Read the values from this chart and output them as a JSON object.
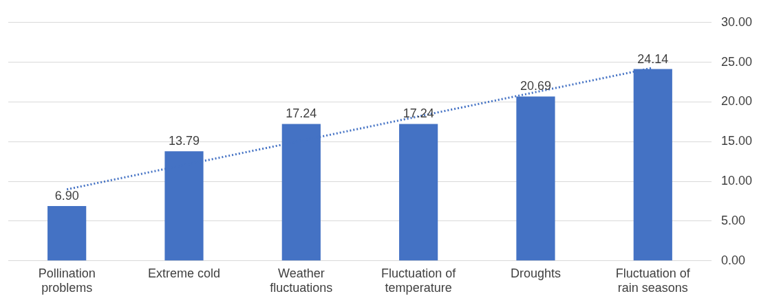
{
  "chart_data": {
    "type": "bar",
    "categories": [
      "Pollination problems",
      "Extreme cold",
      "Weather fluctuations",
      "Fluctuation of temperature",
      "Droughts",
      "Fluctuation of rain seasons"
    ],
    "series": [
      {
        "color": "#4472c4",
        "values": [
          6.9,
          13.79,
          17.24,
          17.24,
          20.69,
          24.14
        ],
        "value_labels": [
          "6.90",
          "13.79",
          "17.24",
          "17.24",
          "20.69",
          "24.14"
        ]
      },
      {
        "type": "line",
        "color": "#4472c4",
        "line_style": "dotted",
        "marker": "none",
        "x": [
          "Pollination problems",
          "Fluctuation of rain seasons"
        ],
        "values": [
          9.0,
          24.3
        ]
      }
    ],
    "ylim": [
      0,
      30
    ],
    "yticks": [
      {
        "value": 0,
        "label": "0.00"
      },
      {
        "value": 5,
        "label": "5.00"
      },
      {
        "value": 10,
        "label": "10.00"
      },
      {
        "value": 15,
        "label": "15.00"
      },
      {
        "value": 20,
        "label": "20.00"
      },
      {
        "value": 25,
        "label": "25.00"
      },
      {
        "value": 30,
        "label": "30.00"
      }
    ],
    "grid": "y",
    "legend": false
  }
}
